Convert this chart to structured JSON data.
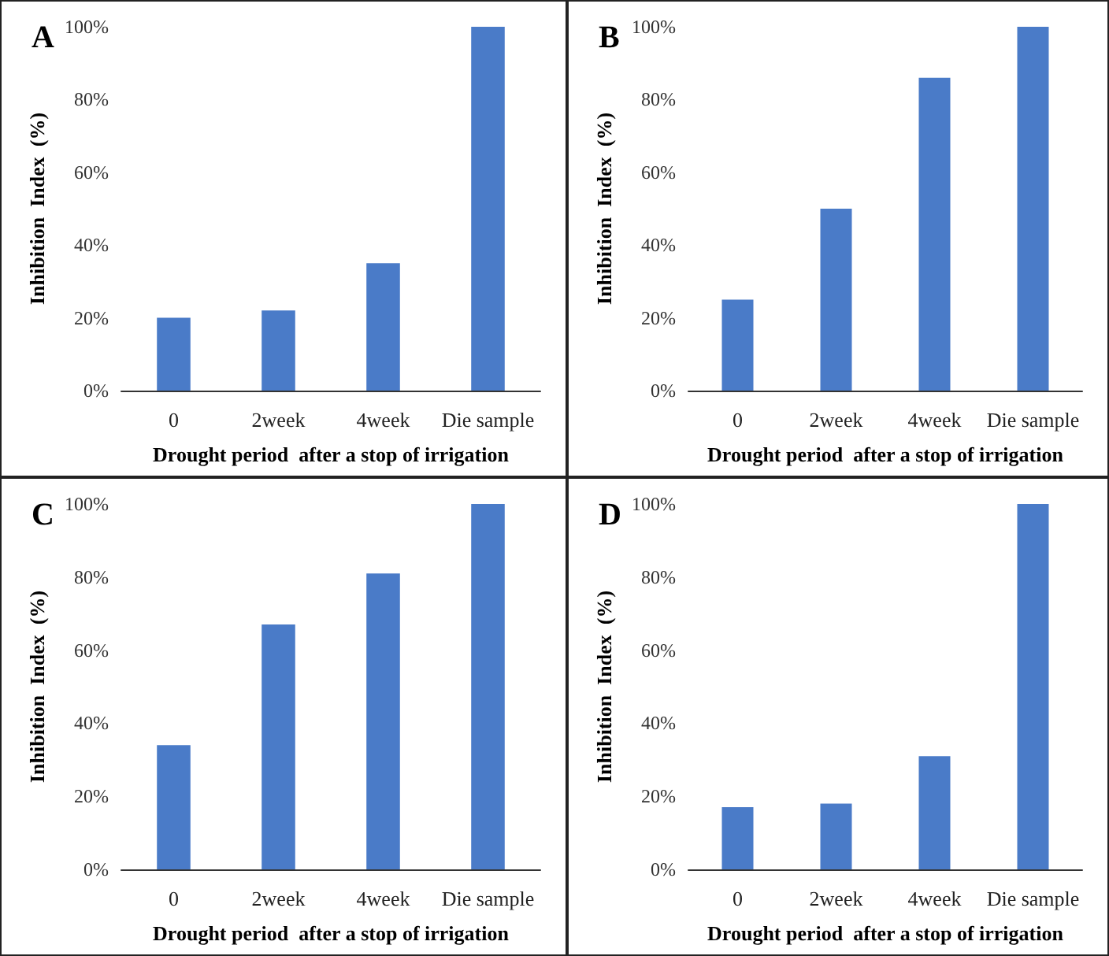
{
  "chart_data": [
    {
      "type": "bar",
      "title": "A",
      "categories": [
        "0",
        "2week",
        "4week",
        "Die sample"
      ],
      "values": [
        20,
        22,
        35,
        100
      ],
      "color": "#4a7bc8",
      "xlabel": "Drought period  after a stop of irrigation",
      "ylabel": "Inhibition  Index  (%)",
      "ylim": [
        0,
        100
      ],
      "yticks": [
        {
          "value": 0,
          "label": "0%"
        },
        {
          "value": 20,
          "label": "20%"
        },
        {
          "value": 40,
          "label": "40%"
        },
        {
          "value": 60,
          "label": "60%"
        },
        {
          "value": 80,
          "label": "80%"
        },
        {
          "value": 100,
          "label": "100%"
        }
      ],
      "grid": false
    },
    {
      "type": "bar",
      "title": "B",
      "categories": [
        "0",
        "2week",
        "4week",
        "Die sample"
      ],
      "values": [
        25,
        50,
        86,
        100
      ],
      "color": "#4a7bc8",
      "xlabel": "Drought period  after a stop of irrigation",
      "ylabel": "Inhibition  Index  (%)",
      "ylim": [
        0,
        100
      ],
      "yticks": [
        {
          "value": 0,
          "label": "0%"
        },
        {
          "value": 20,
          "label": "20%"
        },
        {
          "value": 40,
          "label": "40%"
        },
        {
          "value": 60,
          "label": "60%"
        },
        {
          "value": 80,
          "label": "80%"
        },
        {
          "value": 100,
          "label": "100%"
        }
      ],
      "grid": false
    },
    {
      "type": "bar",
      "title": "C",
      "categories": [
        "0",
        "2week",
        "4week",
        "Die sample"
      ],
      "values": [
        34,
        67,
        81,
        100
      ],
      "color": "#4a7bc8",
      "xlabel": "Drought period  after a stop of irrigation",
      "ylabel": "Inhibition  Index  (%)",
      "ylim": [
        0,
        100
      ],
      "yticks": [
        {
          "value": 0,
          "label": "0%"
        },
        {
          "value": 20,
          "label": "20%"
        },
        {
          "value": 40,
          "label": "40%"
        },
        {
          "value": 60,
          "label": "60%"
        },
        {
          "value": 80,
          "label": "80%"
        },
        {
          "value": 100,
          "label": "100%"
        }
      ],
      "grid": false
    },
    {
      "type": "bar",
      "title": "D",
      "categories": [
        "0",
        "2week",
        "4week",
        "Die sample"
      ],
      "values": [
        17,
        18,
        31,
        100
      ],
      "color": "#4a7bc8",
      "xlabel": "Drought period  after a stop of irrigation",
      "ylabel": "Inhibition  Index  (%)",
      "ylim": [
        0,
        100
      ],
      "yticks": [
        {
          "value": 0,
          "label": "0%"
        },
        {
          "value": 20,
          "label": "20%"
        },
        {
          "value": 40,
          "label": "40%"
        },
        {
          "value": 60,
          "label": "60%"
        },
        {
          "value": 80,
          "label": "80%"
        },
        {
          "value": 100,
          "label": "100%"
        }
      ],
      "grid": false
    }
  ]
}
